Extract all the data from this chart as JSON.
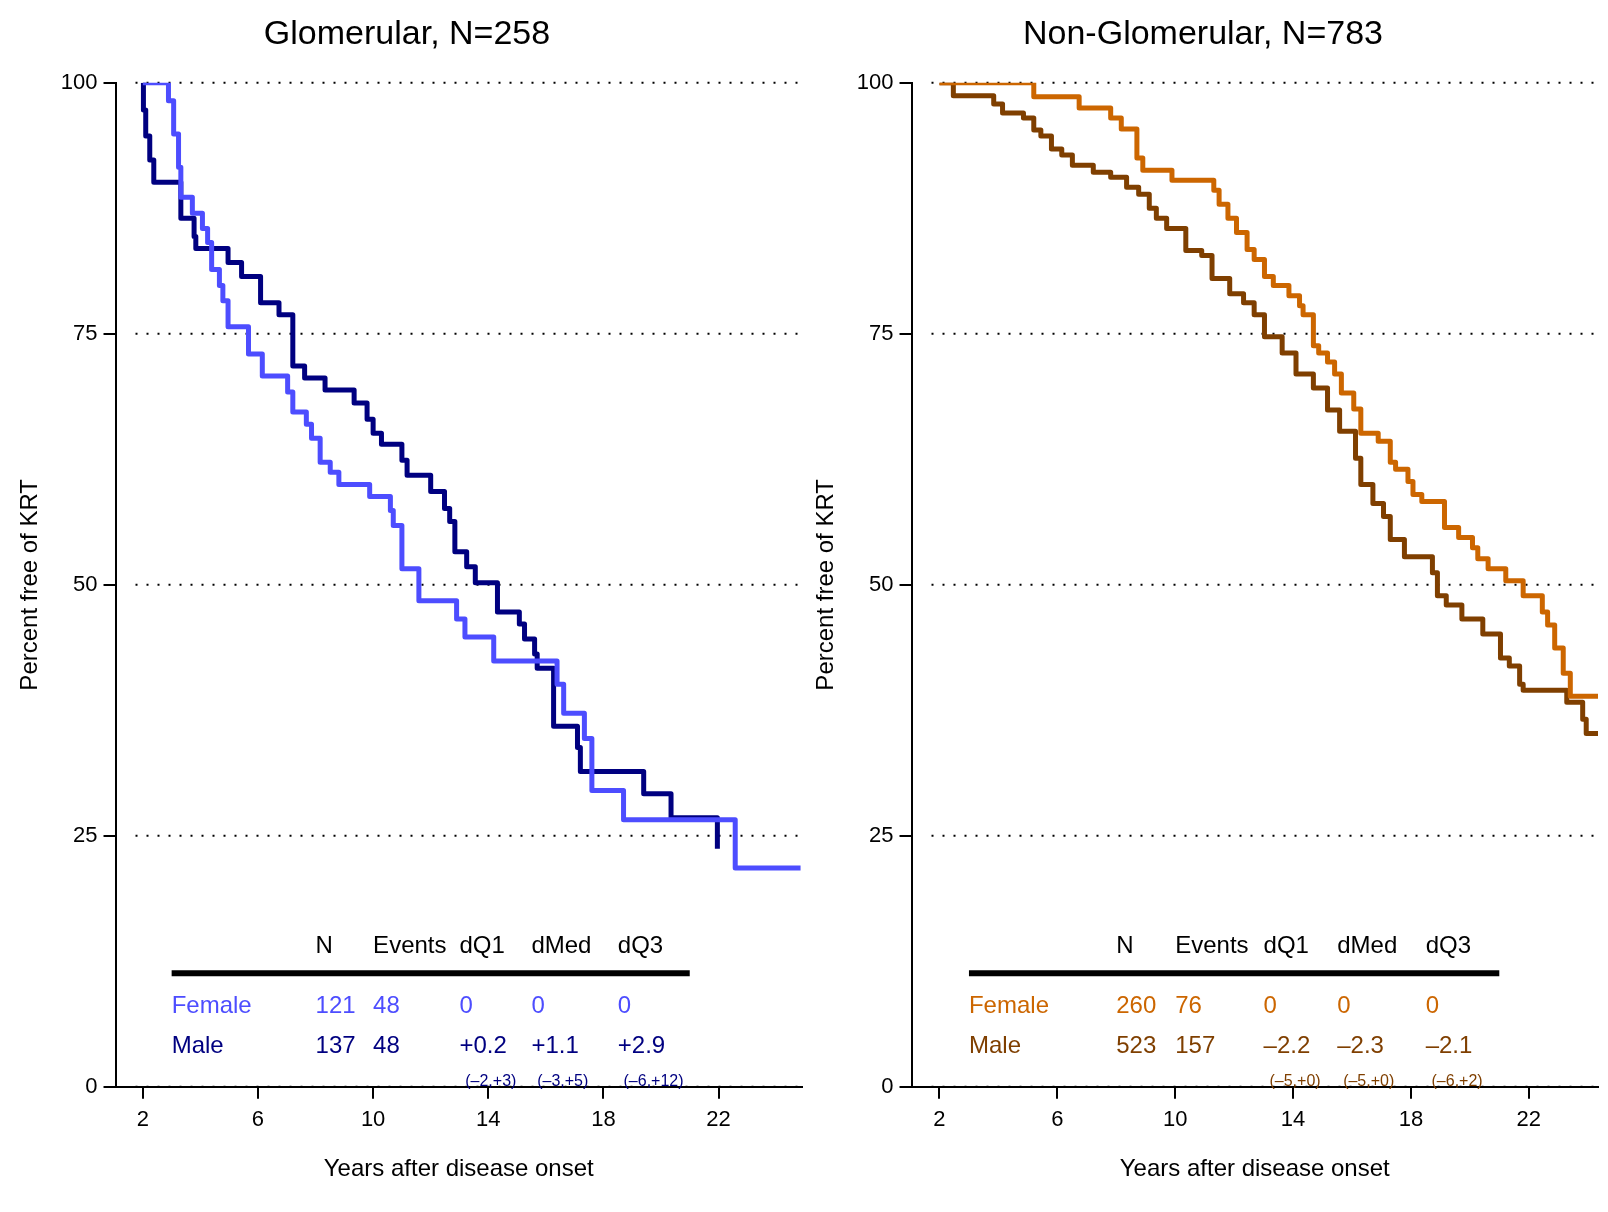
{
  "chart_data": [
    {
      "type": "step",
      "title": "Glomerular, N=258",
      "xlabel": "Years after disease onset",
      "ylabel": "Percent free of KRT",
      "xlim": [
        1.05,
        24.9
      ],
      "xticks": [
        2,
        6,
        10,
        14,
        18,
        22
      ],
      "ylim": [
        0,
        100
      ],
      "yticks": [
        0,
        25,
        50,
        75,
        100
      ],
      "grid": "y",
      "series": [
        {
          "name": "Female",
          "color": "#4d4dff",
          "x": [
            2,
            2.89,
            3.07,
            3.24,
            3.32,
            3.72,
            4.07,
            4.25,
            4.39,
            4.66,
            4.78,
            4.96,
            5.67,
            6.15,
            7.03,
            7.21,
            7.68,
            7.86,
            8.16,
            8.51,
            8.81,
            9.88,
            10.6,
            10.7,
            11.0,
            11.59,
            12.9,
            13.19,
            14.19,
            16.39,
            16.62,
            17.34,
            17.6,
            18.7,
            22.58,
            24.85
          ],
          "values": [
            100,
            98.2,
            94.9,
            91.6,
            88.6,
            87.0,
            85.5,
            84.1,
            81.4,
            79.8,
            78.3,
            75.7,
            73.0,
            70.8,
            69.2,
            67.2,
            66.0,
            64.6,
            62.2,
            61.2,
            60.0,
            58.8,
            57.4,
            55.9,
            51.6,
            48.4,
            46.6,
            44.8,
            42.4,
            40.1,
            37.2,
            34.7,
            29.5,
            26.6,
            21.8,
            21.8
          ]
        },
        {
          "name": "Male",
          "color": "#000080",
          "x": [
            2,
            2.02,
            2.1,
            2.24,
            2.38,
            3.32,
            3.78,
            3.84,
            4.96,
            5.43,
            6.09,
            6.73,
            7.21,
            7.62,
            8.33,
            9.34,
            9.79,
            10.0,
            10.29,
            11.0,
            11.18,
            12.0,
            12.48,
            12.66,
            12.84,
            13.25,
            13.55,
            14.32,
            15.08,
            15.26,
            15.61,
            15.7,
            16.27,
            17.1,
            17.2,
            19.4,
            20.35,
            21.96
          ],
          "values": [
            100,
            97.3,
            94.7,
            92.3,
            90.1,
            86.5,
            84.7,
            83.5,
            82.1,
            80.7,
            78.1,
            76.9,
            71.8,
            70.6,
            69.4,
            68.1,
            66.5,
            65.1,
            64.0,
            62.4,
            60.9,
            59.3,
            57.6,
            56.3,
            53.3,
            51.8,
            50.2,
            47.3,
            46.1,
            44.6,
            43.1,
            41.7,
            35.9,
            33.8,
            31.4,
            29.2,
            26.8,
            23.7
          ]
        }
      ],
      "annotations": [
        "N",
        "Events",
        "dQ1",
        "dMed",
        "dQ3",
        "121",
        "48",
        "0",
        "0",
        "0",
        "137",
        "48",
        "+0.2",
        "+1.1",
        "+2.9",
        "(–2,+3)",
        "(–3,+5)",
        "(–6,+12)"
      ]
    },
    {
      "type": "step",
      "title": "Non-Glomerular, N=783",
      "xlabel": "Years after disease onset",
      "ylabel": "Percent free of KRT",
      "xlim": [
        1.05,
        24.35
      ],
      "xticks": [
        2,
        6,
        10,
        14,
        18,
        22
      ],
      "ylim": [
        0,
        100
      ],
      "yticks": [
        0,
        25,
        50,
        75,
        100
      ],
      "grid": "y",
      "series": [
        {
          "name": "Female",
          "color": "#cc6600",
          "x": [
            2,
            5.2,
            6.74,
            7.81,
            8.17,
            8.7,
            8.9,
            9.89,
            11.31,
            11.49,
            11.79,
            12.08,
            12.44,
            12.68,
            13.03,
            13.33,
            13.86,
            14.22,
            14.34,
            14.69,
            14.87,
            15.17,
            15.41,
            15.64,
            16.06,
            16.3,
            16.89,
            17.3,
            17.48,
            17.9,
            18.07,
            18.37,
            19.14,
            19.62,
            20.09,
            20.27,
            20.62,
            21.22,
            21.81,
            22.46,
            22.64,
            22.88,
            23.17,
            23.41,
            24.18,
            24.35
          ],
          "values": [
            100,
            98.6,
            97.5,
            96.5,
            95.4,
            92.5,
            91.3,
            90.3,
            89.3,
            87.9,
            86.5,
            85.1,
            83.4,
            82.4,
            80.7,
            79.8,
            78.8,
            77.8,
            76.9,
            73.8,
            73.1,
            72.2,
            71.0,
            69.1,
            67.5,
            65.1,
            64.3,
            62.2,
            61.5,
            60.3,
            59.0,
            58.3,
            55.7,
            54.7,
            53.7,
            52.6,
            51.6,
            50.4,
            48.9,
            47.3,
            46.0,
            43.7,
            41.2,
            38.9,
            38.9,
            38.9
          ]
        },
        {
          "name": "Male",
          "color": "#7f3f00",
          "x": [
            2,
            2.47,
            3.84,
            4.14,
            4.85,
            5.2,
            5.44,
            5.8,
            6.15,
            6.51,
            7.22,
            7.81,
            8.35,
            8.76,
            9.12,
            9.36,
            9.71,
            10.36,
            10.9,
            11.25,
            11.85,
            12.32,
            12.68,
            13.03,
            13.63,
            14.1,
            14.69,
            15.17,
            15.58,
            16.12,
            16.3,
            16.71,
            17.07,
            17.3,
            17.78,
            18.73,
            18.9,
            19.2,
            19.73,
            20.44,
            21.04,
            21.34,
            21.69,
            21.81,
            23.29,
            23.83,
            23.95,
            24.35
          ],
          "values": [
            100,
            98.7,
            97.9,
            97.0,
            96.5,
            95.3,
            94.7,
            93.4,
            92.8,
            91.8,
            91.1,
            90.6,
            89.6,
            88.9,
            87.5,
            86.5,
            85.5,
            83.3,
            82.8,
            80.5,
            79.0,
            78.1,
            76.9,
            74.7,
            73.1,
            71.0,
            69.6,
            67.4,
            65.3,
            62.6,
            60.0,
            58.1,
            56.8,
            54.5,
            52.8,
            51.2,
            48.9,
            48.0,
            46.6,
            45.1,
            42.7,
            41.9,
            40.1,
            39.5,
            38.3,
            36.6,
            35.2,
            35.2
          ]
        }
      ],
      "annotations": [
        "N",
        "Events",
        "dQ1",
        "dMed",
        "dQ3",
        "260",
        "76",
        "0",
        "0",
        "0",
        "523",
        "157",
        "–2.2",
        "–2.3",
        "–2.1",
        "(–5,+0)",
        "(–5,+0)",
        "(–6,+2)"
      ]
    }
  ]
}
